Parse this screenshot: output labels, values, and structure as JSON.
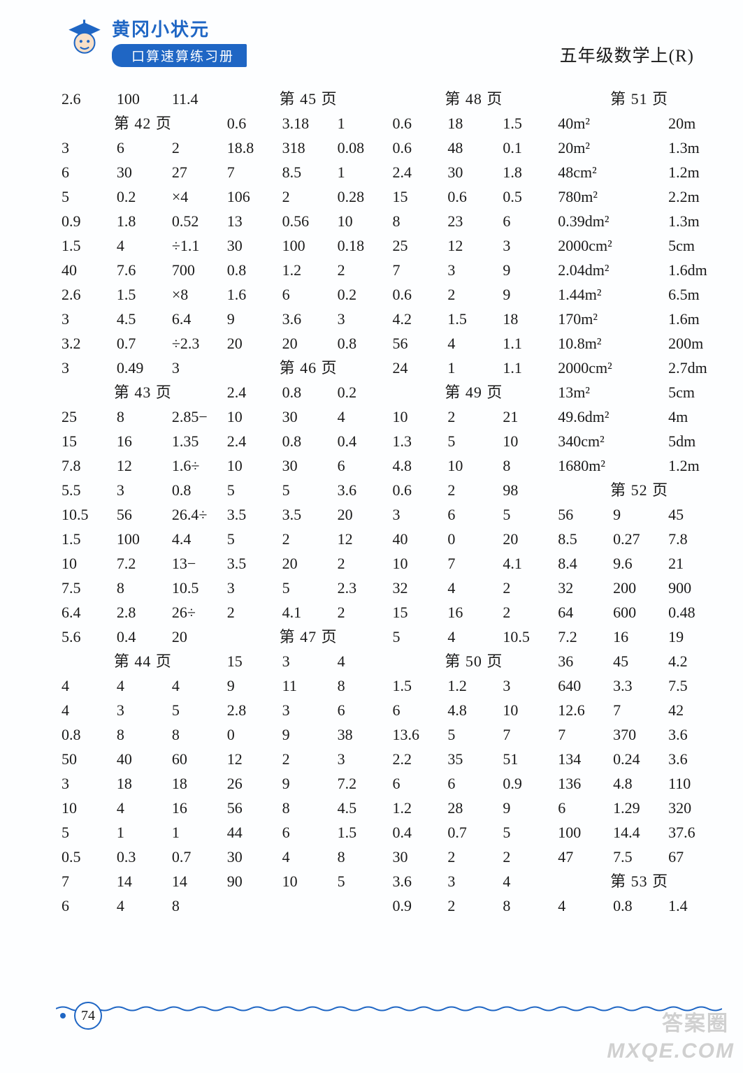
{
  "header": {
    "brand": "黄冈小状元",
    "subtitle": "口算速算练习册",
    "top_right": "五年级数学上(R)",
    "mascot_colors": {
      "hat": "#1f66c4",
      "face": "#f8e0c8",
      "outline": "#1a4ea0"
    }
  },
  "footer": {
    "page_number": "74",
    "wave_color": "#1f66c4"
  },
  "watermarks": {
    "line1": "答案圈",
    "line2": "MXQE.COM"
  },
  "style": {
    "text_color": "#1a1a1a",
    "accent_color": "#1f66c4",
    "background_color": "#fdfeff",
    "cell_fontsize": 22,
    "header_font": "KaiTi"
  },
  "grid": {
    "columns": 12,
    "rows": [
      [
        {
          "t": "2.6"
        },
        {
          "t": "100"
        },
        {
          "t": "11.4"
        },
        {
          "t": "第 45 页",
          "span": 3,
          "h": true
        },
        {
          "t": "第 48 页",
          "span": 3,
          "h": true
        },
        {
          "t": "第 51 页",
          "span": 3,
          "h": true
        }
      ],
      [
        {
          "t": "第 42 页",
          "span": 3,
          "h": true
        },
        {
          "t": "0.6"
        },
        {
          "t": "3.18"
        },
        {
          "t": "1"
        },
        {
          "t": "0.6"
        },
        {
          "t": "18"
        },
        {
          "t": "1.5"
        },
        {
          "t": "40m²",
          "span": 2
        },
        {
          "t": "20m"
        }
      ],
      [
        {
          "t": "3"
        },
        {
          "t": "6"
        },
        {
          "t": "2"
        },
        {
          "t": "18.8"
        },
        {
          "t": "318"
        },
        {
          "t": "0.08"
        },
        {
          "t": "0.6"
        },
        {
          "t": "48"
        },
        {
          "t": "0.1"
        },
        {
          "t": "20m²",
          "span": 2
        },
        {
          "t": "1.3m"
        }
      ],
      [
        {
          "t": "6"
        },
        {
          "t": "30"
        },
        {
          "t": "27"
        },
        {
          "t": "7"
        },
        {
          "t": "8.5"
        },
        {
          "t": "1"
        },
        {
          "t": "2.4"
        },
        {
          "t": "30"
        },
        {
          "t": "1.8"
        },
        {
          "t": "48cm²",
          "span": 2
        },
        {
          "t": "1.2m"
        }
      ],
      [
        {
          "t": "5"
        },
        {
          "t": "0.2"
        },
        {
          "t": "×4"
        },
        {
          "t": "106"
        },
        {
          "t": "2"
        },
        {
          "t": "0.28"
        },
        {
          "t": "15"
        },
        {
          "t": "0.6"
        },
        {
          "t": "0.5"
        },
        {
          "t": "780m²",
          "span": 2
        },
        {
          "t": "2.2m"
        }
      ],
      [
        {
          "t": "0.9"
        },
        {
          "t": "1.8"
        },
        {
          "t": "0.52"
        },
        {
          "t": "13"
        },
        {
          "t": "0.56"
        },
        {
          "t": "10"
        },
        {
          "t": "8"
        },
        {
          "t": "23"
        },
        {
          "t": "6"
        },
        {
          "t": "0.39dm²",
          "span": 2
        },
        {
          "t": "1.3m"
        }
      ],
      [
        {
          "t": "1.5"
        },
        {
          "t": "4"
        },
        {
          "t": "÷1.1"
        },
        {
          "t": "30"
        },
        {
          "t": "100"
        },
        {
          "t": "0.18"
        },
        {
          "t": "25"
        },
        {
          "t": "12"
        },
        {
          "t": "3"
        },
        {
          "t": "2000cm²",
          "span": 2
        },
        {
          "t": "5cm"
        }
      ],
      [
        {
          "t": "40"
        },
        {
          "t": "7.6"
        },
        {
          "t": "700"
        },
        {
          "t": "0.8"
        },
        {
          "t": "1.2"
        },
        {
          "t": "2"
        },
        {
          "t": "7"
        },
        {
          "t": "3"
        },
        {
          "t": "9"
        },
        {
          "t": "2.04dm²",
          "span": 2
        },
        {
          "t": "1.6dm"
        }
      ],
      [
        {
          "t": "2.6"
        },
        {
          "t": "1.5"
        },
        {
          "t": "×8"
        },
        {
          "t": "1.6"
        },
        {
          "t": "6"
        },
        {
          "t": "0.2"
        },
        {
          "t": "0.6"
        },
        {
          "t": "2"
        },
        {
          "t": "9"
        },
        {
          "t": "1.44m²",
          "span": 2
        },
        {
          "t": "6.5m"
        }
      ],
      [
        {
          "t": "3"
        },
        {
          "t": "4.5"
        },
        {
          "t": "6.4"
        },
        {
          "t": "9"
        },
        {
          "t": "3.6"
        },
        {
          "t": "3"
        },
        {
          "t": "4.2"
        },
        {
          "t": "1.5"
        },
        {
          "t": "18"
        },
        {
          "t": "170m²",
          "span": 2
        },
        {
          "t": "1.6m"
        }
      ],
      [
        {
          "t": "3.2"
        },
        {
          "t": "0.7"
        },
        {
          "t": "÷2.3"
        },
        {
          "t": "20"
        },
        {
          "t": "20"
        },
        {
          "t": "0.8"
        },
        {
          "t": "56"
        },
        {
          "t": "4"
        },
        {
          "t": "1.1"
        },
        {
          "t": "10.8m²",
          "span": 2
        },
        {
          "t": "200m"
        }
      ],
      [
        {
          "t": "3"
        },
        {
          "t": "0.49"
        },
        {
          "t": "3"
        },
        {
          "t": "第 46 页",
          "span": 3,
          "h": true
        },
        {
          "t": "24"
        },
        {
          "t": "1"
        },
        {
          "t": "1.1"
        },
        {
          "t": "2000cm²",
          "span": 2
        },
        {
          "t": "2.7dm"
        }
      ],
      [
        {
          "t": "第 43 页",
          "span": 3,
          "h": true
        },
        {
          "t": "2.4"
        },
        {
          "t": "0.8"
        },
        {
          "t": "0.2"
        },
        {
          "t": "第 49 页",
          "span": 3,
          "h": true
        },
        {
          "t": "13m²",
          "span": 2
        },
        {
          "t": "5cm"
        }
      ],
      [
        {
          "t": "25"
        },
        {
          "t": "8"
        },
        {
          "t": "2.85−"
        },
        {
          "t": "10"
        },
        {
          "t": "30"
        },
        {
          "t": "4"
        },
        {
          "t": "10"
        },
        {
          "t": "2"
        },
        {
          "t": "21"
        },
        {
          "t": "49.6dm²",
          "span": 2
        },
        {
          "t": "4m"
        }
      ],
      [
        {
          "t": "15"
        },
        {
          "t": "16"
        },
        {
          "t": "1.35"
        },
        {
          "t": "2.4"
        },
        {
          "t": "0.8"
        },
        {
          "t": "0.4"
        },
        {
          "t": "1.3"
        },
        {
          "t": "5"
        },
        {
          "t": "10"
        },
        {
          "t": "340cm²",
          "span": 2
        },
        {
          "t": "5dm"
        }
      ],
      [
        {
          "t": "7.8"
        },
        {
          "t": "12"
        },
        {
          "t": "1.6÷"
        },
        {
          "t": "10"
        },
        {
          "t": "30"
        },
        {
          "t": "6"
        },
        {
          "t": "4.8"
        },
        {
          "t": "10"
        },
        {
          "t": "8"
        },
        {
          "t": "1680m²",
          "span": 2
        },
        {
          "t": "1.2m"
        }
      ],
      [
        {
          "t": "5.5"
        },
        {
          "t": "3"
        },
        {
          "t": "0.8"
        },
        {
          "t": "5"
        },
        {
          "t": "5"
        },
        {
          "t": "3.6"
        },
        {
          "t": "0.6"
        },
        {
          "t": "2"
        },
        {
          "t": "98"
        },
        {
          "t": "第 52 页",
          "span": 3,
          "h": true
        }
      ],
      [
        {
          "t": "10.5"
        },
        {
          "t": "56"
        },
        {
          "t": "26.4÷"
        },
        {
          "t": "3.5"
        },
        {
          "t": "3.5"
        },
        {
          "t": "20"
        },
        {
          "t": "3"
        },
        {
          "t": "6"
        },
        {
          "t": "5"
        },
        {
          "t": "56"
        },
        {
          "t": "9"
        },
        {
          "t": "45"
        }
      ],
      [
        {
          "t": "1.5"
        },
        {
          "t": "100"
        },
        {
          "t": "4.4"
        },
        {
          "t": "5"
        },
        {
          "t": "2"
        },
        {
          "t": "12"
        },
        {
          "t": "40"
        },
        {
          "t": "0"
        },
        {
          "t": "20"
        },
        {
          "t": "8.5"
        },
        {
          "t": "0.27"
        },
        {
          "t": "7.8"
        }
      ],
      [
        {
          "t": "10"
        },
        {
          "t": "7.2"
        },
        {
          "t": "13−"
        },
        {
          "t": "3.5"
        },
        {
          "t": "20"
        },
        {
          "t": "2"
        },
        {
          "t": "10"
        },
        {
          "t": "7"
        },
        {
          "t": "4.1"
        },
        {
          "t": "8.4"
        },
        {
          "t": "9.6"
        },
        {
          "t": "21"
        }
      ],
      [
        {
          "t": "7.5"
        },
        {
          "t": "8"
        },
        {
          "t": "10.5"
        },
        {
          "t": "3"
        },
        {
          "t": "5"
        },
        {
          "t": "2.3"
        },
        {
          "t": "32"
        },
        {
          "t": "4"
        },
        {
          "t": "2"
        },
        {
          "t": "32"
        },
        {
          "t": "200"
        },
        {
          "t": "900"
        }
      ],
      [
        {
          "t": "6.4"
        },
        {
          "t": "2.8"
        },
        {
          "t": "26÷"
        },
        {
          "t": "2"
        },
        {
          "t": "4.1"
        },
        {
          "t": "2"
        },
        {
          "t": "15"
        },
        {
          "t": "16"
        },
        {
          "t": "2"
        },
        {
          "t": "64"
        },
        {
          "t": "600"
        },
        {
          "t": "0.48"
        }
      ],
      [
        {
          "t": "5.6"
        },
        {
          "t": "0.4"
        },
        {
          "t": "20"
        },
        {
          "t": "第 47 页",
          "span": 3,
          "h": true
        },
        {
          "t": "5"
        },
        {
          "t": "4"
        },
        {
          "t": "10.5"
        },
        {
          "t": "7.2"
        },
        {
          "t": "16"
        },
        {
          "t": "19"
        }
      ],
      [
        {
          "t": "第 44 页",
          "span": 3,
          "h": true
        },
        {
          "t": "15"
        },
        {
          "t": "3"
        },
        {
          "t": "4"
        },
        {
          "t": "第 50 页",
          "span": 3,
          "h": true
        },
        {
          "t": "36"
        },
        {
          "t": "45"
        },
        {
          "t": "4.2"
        }
      ],
      [
        {
          "t": "4"
        },
        {
          "t": "4"
        },
        {
          "t": "4"
        },
        {
          "t": "9"
        },
        {
          "t": "11"
        },
        {
          "t": "8"
        },
        {
          "t": "1.5"
        },
        {
          "t": "1.2"
        },
        {
          "t": "3"
        },
        {
          "t": "640"
        },
        {
          "t": "3.3"
        },
        {
          "t": "7.5"
        }
      ],
      [
        {
          "t": "4"
        },
        {
          "t": "3"
        },
        {
          "t": "5"
        },
        {
          "t": "2.8"
        },
        {
          "t": "3"
        },
        {
          "t": "6"
        },
        {
          "t": "6"
        },
        {
          "t": "4.8"
        },
        {
          "t": "10"
        },
        {
          "t": "12.6"
        },
        {
          "t": "7"
        },
        {
          "t": "42"
        }
      ],
      [
        {
          "t": "0.8"
        },
        {
          "t": "8"
        },
        {
          "t": "8"
        },
        {
          "t": "0"
        },
        {
          "t": "9"
        },
        {
          "t": "38"
        },
        {
          "t": "13.6"
        },
        {
          "t": "5"
        },
        {
          "t": "7"
        },
        {
          "t": "7"
        },
        {
          "t": "370"
        },
        {
          "t": "3.6"
        }
      ],
      [
        {
          "t": "50"
        },
        {
          "t": "40"
        },
        {
          "t": "60"
        },
        {
          "t": "12"
        },
        {
          "t": "2"
        },
        {
          "t": "3"
        },
        {
          "t": "2.2"
        },
        {
          "t": "35"
        },
        {
          "t": "51"
        },
        {
          "t": "134"
        },
        {
          "t": "0.24"
        },
        {
          "t": "3.6"
        }
      ],
      [
        {
          "t": "3"
        },
        {
          "t": "18"
        },
        {
          "t": "18"
        },
        {
          "t": "26"
        },
        {
          "t": "9"
        },
        {
          "t": "7.2"
        },
        {
          "t": "6"
        },
        {
          "t": "6"
        },
        {
          "t": "0.9"
        },
        {
          "t": "136"
        },
        {
          "t": "4.8"
        },
        {
          "t": "110"
        }
      ],
      [
        {
          "t": "10"
        },
        {
          "t": "4"
        },
        {
          "t": "16"
        },
        {
          "t": "56"
        },
        {
          "t": "8"
        },
        {
          "t": "4.5"
        },
        {
          "t": "1.2"
        },
        {
          "t": "28"
        },
        {
          "t": "9"
        },
        {
          "t": "6"
        },
        {
          "t": "1.29"
        },
        {
          "t": "320"
        }
      ],
      [
        {
          "t": "5"
        },
        {
          "t": "1"
        },
        {
          "t": "1"
        },
        {
          "t": "44"
        },
        {
          "t": "6"
        },
        {
          "t": "1.5"
        },
        {
          "t": "0.4"
        },
        {
          "t": "0.7"
        },
        {
          "t": "5"
        },
        {
          "t": "100"
        },
        {
          "t": "14.4"
        },
        {
          "t": "37.6"
        }
      ],
      [
        {
          "t": "0.5"
        },
        {
          "t": "0.3"
        },
        {
          "t": "0.7"
        },
        {
          "t": "30"
        },
        {
          "t": "4"
        },
        {
          "t": "8"
        },
        {
          "t": "30"
        },
        {
          "t": "2"
        },
        {
          "t": "2"
        },
        {
          "t": "47"
        },
        {
          "t": "7.5"
        },
        {
          "t": "67"
        }
      ],
      [
        {
          "t": "7"
        },
        {
          "t": "14"
        },
        {
          "t": "14"
        },
        {
          "t": "90"
        },
        {
          "t": "10"
        },
        {
          "t": "5"
        },
        {
          "t": "3.6"
        },
        {
          "t": "3"
        },
        {
          "t": "4"
        },
        {
          "t": "第 53 页",
          "span": 3,
          "h": true
        }
      ],
      [
        {
          "t": "6"
        },
        {
          "t": "4"
        },
        {
          "t": "8"
        },
        {
          "t": ""
        },
        {
          "t": ""
        },
        {
          "t": ""
        },
        {
          "t": "0.9"
        },
        {
          "t": "2"
        },
        {
          "t": "8"
        },
        {
          "t": "4"
        },
        {
          "t": "0.8"
        },
        {
          "t": "1.4"
        }
      ]
    ]
  }
}
